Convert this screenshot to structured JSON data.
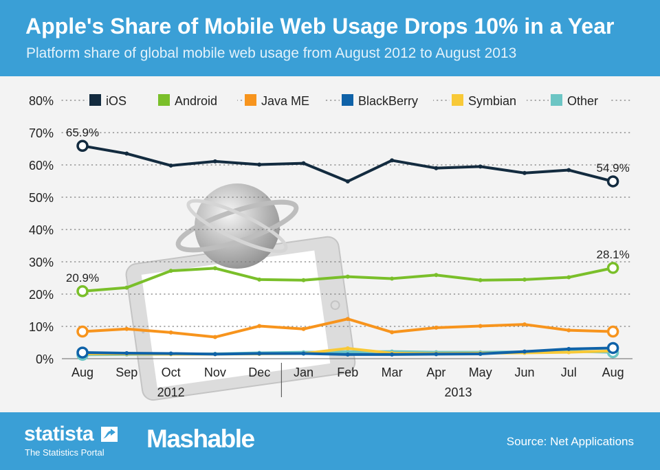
{
  "header": {
    "title": "Apple's Share of Mobile Web Usage Drops 10% in a Year",
    "subtitle": "Platform share of global mobile web usage from August 2012 to August 2013"
  },
  "footer": {
    "statista_logo": "statista",
    "statista_tagline": "The Statistics Portal",
    "mashable_logo": "Mashable",
    "source": "Source: Net Applications"
  },
  "chart_data": {
    "type": "line",
    "title": "Apple's Share of Mobile Web Usage Drops 10% in a Year",
    "subtitle": "Platform share of global mobile web usage from August 2012 to August 2013",
    "xlabel": "",
    "ylabel": "",
    "categories": [
      "Aug",
      "Sep",
      "Oct",
      "Nov",
      "Dec",
      "Jan",
      "Feb",
      "Mar",
      "Apr",
      "May",
      "Jun",
      "Jul",
      "Aug"
    ],
    "year_groups": [
      {
        "label": "2012",
        "from": 0,
        "to": 4
      },
      {
        "label": "2013",
        "from": 5,
        "to": 12
      }
    ],
    "y_ticks": [
      0,
      10,
      20,
      30,
      40,
      50,
      60,
      70,
      80
    ],
    "y_tick_labels": [
      "0%",
      "10%",
      "20%",
      "30%",
      "40%",
      "50%",
      "60%",
      "70%",
      "80%"
    ],
    "ylim": [
      0,
      80
    ],
    "grid": "horizontal dotted",
    "legend_position": "top",
    "series": [
      {
        "name": "Other",
        "color": "#6cc5c4",
        "values": [
          1.2,
          1.3,
          1.4,
          1.5,
          1.8,
          2.0,
          2.1,
          2.2,
          2.0,
          2.0,
          2.1,
          2.3,
          2.0
        ],
        "endpoint_markers": true
      },
      {
        "name": "Symbian",
        "color": "#f8c937",
        "values": [
          1.5,
          1.5,
          1.4,
          1.4,
          1.5,
          1.6,
          3.2,
          1.7,
          1.6,
          1.7,
          1.8,
          2.0,
          2.4
        ],
        "endpoint_markers": false
      },
      {
        "name": "BlackBerry",
        "color": "#0f62a8",
        "values": [
          1.9,
          1.7,
          1.6,
          1.4,
          1.6,
          1.6,
          1.3,
          1.3,
          1.4,
          1.5,
          2.2,
          3.0,
          3.3
        ],
        "endpoint_markers": true
      },
      {
        "name": "Java ME",
        "color": "#f7941d",
        "values": [
          8.4,
          9.2,
          8.1,
          6.7,
          10.1,
          9.2,
          12.3,
          8.2,
          9.6,
          10.1,
          10.6,
          8.8,
          8.4
        ],
        "endpoint_markers": true
      },
      {
        "name": "Android",
        "color": "#7abf2a",
        "values": [
          20.9,
          22.0,
          27.2,
          28.0,
          24.5,
          24.3,
          25.4,
          24.8,
          25.9,
          24.3,
          24.5,
          25.2,
          28.1
        ],
        "endpoint_markers": true
      },
      {
        "name": "iOS",
        "color": "#132b3f",
        "values": [
          65.9,
          63.5,
          59.8,
          61.1,
          60.1,
          60.5,
          54.9,
          61.4,
          59.0,
          59.5,
          57.5,
          58.4,
          54.9
        ],
        "endpoint_markers": true
      }
    ],
    "legend_order": [
      "iOS",
      "Android",
      "Java ME",
      "BlackBerry",
      "Symbian",
      "Other"
    ],
    "annotations": [
      {
        "series": "iOS",
        "index": 0,
        "text": "65.9%"
      },
      {
        "series": "iOS",
        "index": 12,
        "text": "54.9%"
      },
      {
        "series": "Android",
        "index": 0,
        "text": "20.9%"
      },
      {
        "series": "Android",
        "index": 12,
        "text": "28.1%"
      }
    ]
  }
}
